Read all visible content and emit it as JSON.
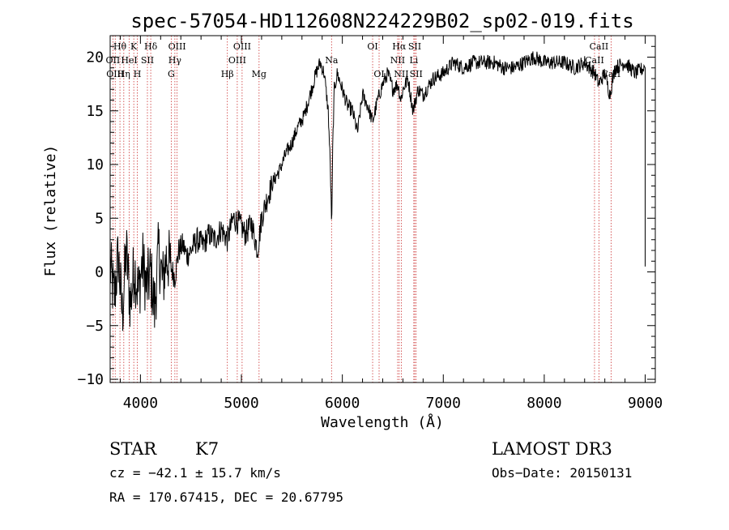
{
  "chart_data": {
    "type": "line",
    "title": "spec-57054-HD112608N224229B02_sp02-019.fits",
    "xlabel": "Wavelength (Å)",
    "ylabel": "Flux (relative)",
    "xlim": [
      3700,
      9100
    ],
    "ylim": [
      -10.3,
      22
    ],
    "xticks": [
      4000,
      5000,
      6000,
      7000,
      8000,
      9000
    ],
    "xtick_labels": [
      "4000",
      "5000",
      "6000",
      "7000",
      "8000",
      "9000"
    ],
    "yticks": [
      -10,
      -5,
      0,
      5,
      10,
      15,
      20
    ],
    "ytick_labels": [
      "−10",
      "−5",
      "0",
      "5",
      "10",
      "15",
      "20"
    ],
    "grid": false,
    "line_color": "#000000",
    "marker_color": "#cc3333",
    "series": [
      {
        "x": [
          3700,
          3740,
          3780,
          3820,
          3860,
          3900,
          3940,
          3980,
          4020,
          4060,
          4100,
          4140,
          4180,
          4220,
          4260,
          4300,
          4340,
          4380,
          4420,
          4460,
          4500,
          4560,
          4620,
          4680,
          4740,
          4800,
          4860,
          4920,
          4980,
          5040,
          5100,
          5160,
          5200,
          5260,
          5320,
          5380,
          5440,
          5500,
          5560,
          5620,
          5680,
          5740,
          5780,
          5820,
          5860,
          5880,
          5895,
          5905,
          5920,
          5950,
          6000,
          6050,
          6100,
          6150,
          6200,
          6250,
          6300,
          6350,
          6400,
          6450,
          6500,
          6550,
          6580,
          6600,
          6650,
          6700,
          6750,
          6800,
          6900,
          7000,
          7100,
          7200,
          7300,
          7400,
          7500,
          7600,
          7700,
          7800,
          7900,
          8000,
          8100,
          8200,
          8300,
          8400,
          8500,
          8540,
          8600,
          8650,
          8700,
          8800,
          8900,
          8990,
          9000
        ],
        "y": [
          0.5,
          -2.5,
          1.5,
          -4.0,
          2.0,
          -3.0,
          0.5,
          -2.0,
          1.0,
          -1.5,
          0.0,
          -3.5,
          2.0,
          -1.0,
          1.5,
          0.5,
          -0.5,
          2.0,
          2.5,
          1.5,
          2.0,
          3.0,
          2.5,
          3.5,
          3.0,
          4.0,
          3.0,
          5.0,
          4.5,
          3.5,
          4.5,
          2.0,
          5.0,
          7.0,
          8.5,
          9.5,
          11.0,
          12.0,
          13.5,
          14.5,
          16.5,
          18.5,
          19.5,
          18.5,
          15.0,
          10.0,
          4.0,
          12.0,
          17.0,
          18.5,
          17.0,
          15.5,
          15.0,
          13.0,
          16.5,
          15.5,
          14.0,
          16.0,
          17.5,
          18.5,
          17.0,
          17.5,
          16.0,
          17.0,
          18.0,
          15.0,
          17.0,
          16.5,
          18.0,
          18.5,
          19.5,
          19.0,
          19.5,
          19.5,
          19.5,
          19.0,
          19.0,
          19.5,
          20.0,
          19.5,
          19.5,
          19.5,
          19.0,
          19.5,
          18.5,
          17.5,
          18.5,
          16.5,
          19.0,
          19.5,
          18.5,
          19.0,
          0.5
        ]
      }
    ],
    "line_markers": [
      {
        "label": "Hθ",
        "x": 3797,
        "row": 0
      },
      {
        "label": "OII",
        "x": 3727,
        "row": 1
      },
      {
        "label": "OIII",
        "x": 3750,
        "row": 2
      },
      {
        "label": "K",
        "x": 3934,
        "row": 0
      },
      {
        "label": "HeI",
        "x": 3889,
        "row": 1
      },
      {
        "label": "Hη",
        "x": 3835,
        "row": 2
      },
      {
        "label": "H",
        "x": 3969,
        "row": 2
      },
      {
        "label": "SII",
        "x": 4069,
        "row": 1
      },
      {
        "label": "Hδ",
        "x": 4102,
        "row": 0
      },
      {
        "label": "OIII",
        "x": 4363,
        "row": 0
      },
      {
        "label": "Hγ",
        "x": 4341,
        "row": 1
      },
      {
        "label": "G",
        "x": 4305,
        "row": 2
      },
      {
        "label": "OIII",
        "x": 5007,
        "row": 0
      },
      {
        "label": "OIII",
        "x": 4959,
        "row": 1
      },
      {
        "label": "Hβ",
        "x": 4861,
        "row": 2
      },
      {
        "label": "Mg",
        "x": 5175,
        "row": 2
      },
      {
        "label": "Na",
        "x": 5893,
        "row": 1
      },
      {
        "label": "OI",
        "x": 6300,
        "row": 0
      },
      {
        "label": "OI",
        "x": 6364,
        "row": 2
      },
      {
        "label": "Hα",
        "x": 6563,
        "row": 0
      },
      {
        "label": "SII",
        "x": 6717,
        "row": 0
      },
      {
        "label": "NII",
        "x": 6548,
        "row": 1
      },
      {
        "label": "Li",
        "x": 6708,
        "row": 1
      },
      {
        "label": "NII",
        "x": 6584,
        "row": 2
      },
      {
        "label": "SII",
        "x": 6731,
        "row": 2
      },
      {
        "label": "CaII",
        "x": 8542,
        "row": 0
      },
      {
        "label": "CaII",
        "x": 8498,
        "row": 1
      },
      {
        "label": "CaII",
        "x": 8662,
        "row": 2
      }
    ]
  },
  "info": {
    "class": "STAR",
    "subclass": "K7",
    "survey": "LAMOST DR3",
    "cz": "cz = −42.1 ± 15.7 km/s",
    "obs_date": "Obs−Date: 20150131",
    "radec": "RA = 170.67415, DEC =  20.67795"
  }
}
